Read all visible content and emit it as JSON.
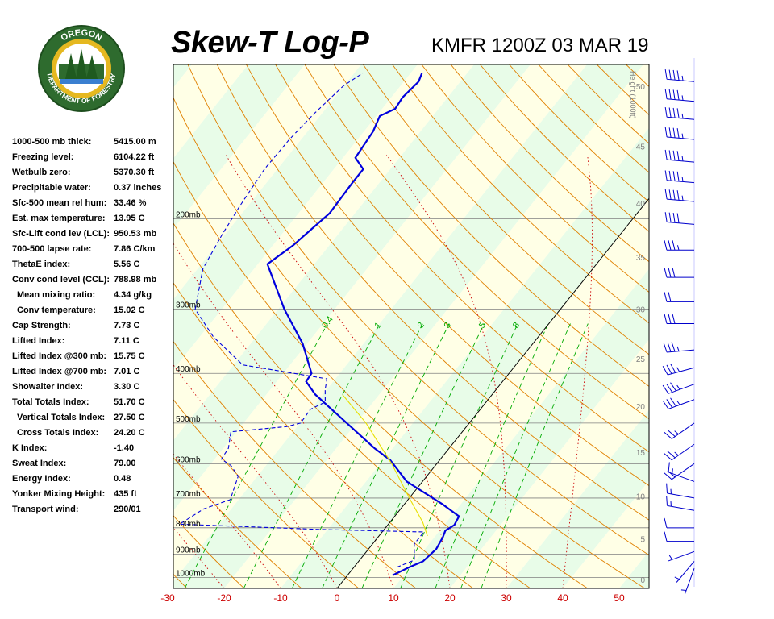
{
  "header": {
    "title": "Skew-T Log-P",
    "station": "KMFR 1200Z 03 MAR 19"
  },
  "logo": {
    "top_text": "OREGON",
    "bottom_text": "DEPARTMENT OF FORESTRY",
    "ring_color": "#2e6b2e",
    "gold_color": "#e5b820"
  },
  "indices": [
    {
      "label": "1000-500 mb thick:",
      "value": "5415.00 m"
    },
    {
      "label": "Freezing level:",
      "value": "6104.22 ft"
    },
    {
      "label": "Wetbulb zero:",
      "value": "5370.30 ft"
    },
    {
      "label": "Precipitable water:",
      "value": "0.37 inches"
    },
    {
      "label": "Sfc-500 mean rel hum:",
      "value": "33.46 %"
    },
    {
      "label": "Est. max temperature:",
      "value": "13.95 C"
    },
    {
      "label": "Sfc-Lift cond lev (LCL):",
      "value": "950.53 mb"
    },
    {
      "label": "700-500 lapse rate:",
      "value": "7.86 C/km"
    },
    {
      "label": "ThetaE index:",
      "value": "5.56 C"
    },
    {
      "label": "Conv cond level (CCL):",
      "value": "788.98 mb"
    },
    {
      "label": "Mean mixing ratio:",
      "value": "4.34 g/kg",
      "indent": true
    },
    {
      "label": "Conv temperature:",
      "value": "15.02 C",
      "indent": true
    },
    {
      "label": "Cap Strength:",
      "value": "7.73 C"
    },
    {
      "label": "Lifted Index:",
      "value": "7.11 C"
    },
    {
      "label": "Lifted Index @300 mb:",
      "value": "15.75 C"
    },
    {
      "label": "Lifted Index @700 mb:",
      "value": "7.01 C"
    },
    {
      "label": "Showalter Index:",
      "value": "3.30 C"
    },
    {
      "label": "Total Totals Index:",
      "value": "51.70 C"
    },
    {
      "label": "Vertical Totals Index:",
      "value": "27.50 C",
      "indent": true
    },
    {
      "label": "Cross Totals Index:",
      "value": "24.20 C",
      "indent": true
    },
    {
      "label": "K Index:",
      "value": "-1.40"
    },
    {
      "label": "Sweat Index:",
      "value": "79.00"
    },
    {
      "label": "Energy Index:",
      "value": "0.48"
    },
    {
      "label": "Yonker Mixing Height:",
      "value": "435 ft"
    },
    {
      "label": "Transport wind:",
      "value": "290/01"
    }
  ],
  "chart_data": {
    "type": "line",
    "subtype": "skew-t log-p",
    "xlabel": "",
    "ylabel": "",
    "temperature_ticks": [
      "-30",
      "-20",
      "-10",
      "0",
      "10",
      "20",
      "30",
      "40",
      "50"
    ],
    "temperature_tick_values": [
      -30,
      -20,
      -10,
      0,
      10,
      20,
      30,
      40,
      50
    ],
    "pressure_labels": [
      "200mb",
      "300mb",
      "400mb",
      "500mb",
      "600mb",
      "700mb",
      "800mb",
      "900mb",
      "1000mb"
    ],
    "pressure_levels": [
      200,
      300,
      400,
      500,
      600,
      700,
      800,
      900,
      1000
    ],
    "height_axis_label": "Height (1000ft)",
    "height_ticks": [
      "0",
      "5",
      "10",
      "15",
      "20",
      "25",
      "30",
      "35",
      "40",
      "45",
      "50"
    ],
    "mixing_ratio_labels": [
      "0.4",
      "1",
      "2",
      "3",
      "5",
      "8"
    ],
    "series": [
      {
        "color": "#0000dd",
        "style": "solid",
        "points": [
          {
            "p": 990,
            "t": 8.0
          },
          {
            "p": 955,
            "t": 9.8
          },
          {
            "p": 930,
            "t": 11.4
          },
          {
            "p": 880,
            "t": 12.0
          },
          {
            "p": 835,
            "t": 11.5
          },
          {
            "p": 810,
            "t": 11.0
          },
          {
            "p": 790,
            "t": 11.8
          },
          {
            "p": 760,
            "t": 11.4
          },
          {
            "p": 720,
            "t": 6.8
          },
          {
            "p": 650,
            "t": -2.8
          },
          {
            "p": 590,
            "t": -8.8
          },
          {
            "p": 560,
            "t": -13.2
          },
          {
            "p": 440,
            "t": -31.3
          },
          {
            "p": 415,
            "t": -34.8
          },
          {
            "p": 400,
            "t": -35.0
          },
          {
            "p": 350,
            "t": -40.8
          },
          {
            "p": 300,
            "t": -48.9
          },
          {
            "p": 245,
            "t": -58.3
          },
          {
            "p": 225,
            "t": -56.4
          },
          {
            "p": 218,
            "t": -56.0
          },
          {
            "p": 195,
            "t": -54.5
          },
          {
            "p": 170,
            "t": -54.8
          },
          {
            "p": 160,
            "t": -54.8
          },
          {
            "p": 152,
            "t": -57.8
          },
          {
            "p": 135,
            "t": -58.4
          },
          {
            "p": 126,
            "t": -59.4
          },
          {
            "p": 122,
            "t": -57.7
          },
          {
            "p": 116,
            "t": -58.0
          },
          {
            "p": 108,
            "t": -57.4
          },
          {
            "p": 104,
            "t": -58.0
          }
        ]
      },
      {
        "color": "#0000dd",
        "style": "dashed",
        "points": [
          {
            "p": 955,
            "t": 7.6
          },
          {
            "p": 925,
            "t": 9.7
          },
          {
            "p": 860,
            "t": 7.4
          },
          {
            "p": 815,
            "t": 7.4
          },
          {
            "p": 806,
            "t": -11.4
          },
          {
            "p": 787,
            "t": -37.0
          },
          {
            "p": 755,
            "t": -35.7
          },
          {
            "p": 735,
            "t": -34.9
          },
          {
            "p": 705,
            "t": -31.5
          },
          {
            "p": 635,
            "t": -33.4
          },
          {
            "p": 605,
            "t": -36.2
          },
          {
            "p": 588,
            "t": -38.8
          },
          {
            "p": 560,
            "t": -39.1
          },
          {
            "p": 520,
            "t": -41.0
          },
          {
            "p": 508,
            "t": -31.9
          },
          {
            "p": 500,
            "t": -29.9
          },
          {
            "p": 470,
            "t": -30.1
          },
          {
            "p": 455,
            "t": -28.5
          },
          {
            "p": 430,
            "t": -30.3
          },
          {
            "p": 410,
            "t": -31.5
          },
          {
            "p": 385,
            "t": -48.4
          },
          {
            "p": 340,
            "t": -57.5
          },
          {
            "p": 300,
            "t": -64.7
          },
          {
            "p": 250,
            "t": -69.1
          },
          {
            "p": 215,
            "t": -70.5
          },
          {
            "p": 190,
            "t": -71.4
          },
          {
            "p": 160,
            "t": -72.3
          },
          {
            "p": 140,
            "t": -72.1
          },
          {
            "p": 125,
            "t": -71.4
          },
          {
            "p": 110,
            "t": -70.1
          },
          {
            "p": 104,
            "t": -68.5
          }
        ]
      },
      {
        "color": "#e8e000",
        "style": "solid",
        "points": [
          {
            "p": 830,
            "t": 8.6
          },
          {
            "p": 780,
            "t": 5.8
          },
          {
            "p": 700,
            "t": 0.0
          },
          {
            "p": 600,
            "t": -8.0
          },
          {
            "p": 500,
            "t": -18.3
          },
          {
            "p": 440,
            "t": -26.5
          }
        ]
      }
    ],
    "wind_barbs": [
      {
        "p": 960,
        "dir": 200,
        "kt": 5
      },
      {
        "p": 930,
        "dir": 220,
        "kt": 5
      },
      {
        "p": 890,
        "dir": 250,
        "kt": 5
      },
      {
        "p": 850,
        "dir": 270,
        "kt": 10
      },
      {
        "p": 800,
        "dir": 270,
        "kt": 10
      },
      {
        "p": 740,
        "dir": 280,
        "kt": 15
      },
      {
        "p": 700,
        "dir": 280,
        "kt": 15
      },
      {
        "p": 650,
        "dir": 290,
        "kt": 15
      },
      {
        "p": 600,
        "dir": 235,
        "kt": 20
      },
      {
        "p": 550,
        "dir": 235,
        "kt": 25
      },
      {
        "p": 500,
        "dir": 235,
        "kt": 25
      },
      {
        "p": 450,
        "dir": 250,
        "kt": 35
      },
      {
        "p": 420,
        "dir": 250,
        "kt": 35
      },
      {
        "p": 390,
        "dir": 255,
        "kt": 35
      },
      {
        "p": 360,
        "dir": 265,
        "kt": 35
      },
      {
        "p": 320,
        "dir": 270,
        "kt": 30
      },
      {
        "p": 290,
        "dir": 270,
        "kt": 20
      },
      {
        "p": 260,
        "dir": 270,
        "kt": 30
      },
      {
        "p": 230,
        "dir": 270,
        "kt": 35
      },
      {
        "p": 205,
        "dir": 275,
        "kt": 40
      },
      {
        "p": 185,
        "dir": 275,
        "kt": 45
      },
      {
        "p": 170,
        "dir": 275,
        "kt": 45
      },
      {
        "p": 155,
        "dir": 275,
        "kt": 45
      },
      {
        "p": 140,
        "dir": 275,
        "kt": 45
      },
      {
        "p": 128,
        "dir": 275,
        "kt": 45
      },
      {
        "p": 118,
        "dir": 275,
        "kt": 45
      },
      {
        "p": 108,
        "dir": 275,
        "kt": 45
      }
    ],
    "colors": {
      "dry_adiabat": "#e08000",
      "moist_adiabat": "#cc0000",
      "mixing_ratio": "#00aa00",
      "grid": "#808080",
      "band_a": "#ffffe6",
      "band_b": "#e8fce8",
      "tick_label": "#cc0000",
      "wind": "#0000cc"
    }
  }
}
